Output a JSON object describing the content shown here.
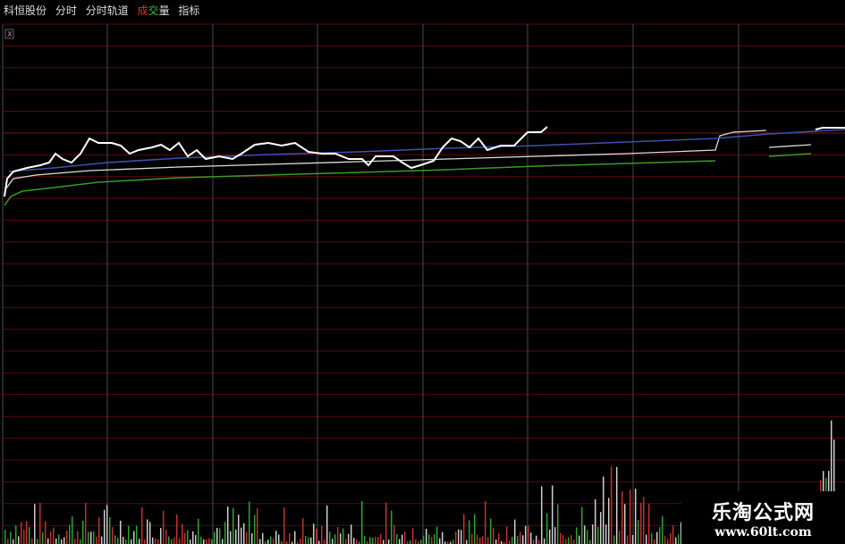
{
  "toolbar": {
    "stock": "科恒股份",
    "items": [
      "分时",
      "分时轨道"
    ],
    "volume": [
      "成",
      "交",
      "量"
    ],
    "indicator": "指标"
  },
  "close_icon": "X",
  "watermark": {
    "name": "乐淘公式网",
    "url": "www.60lt.com"
  }
}
